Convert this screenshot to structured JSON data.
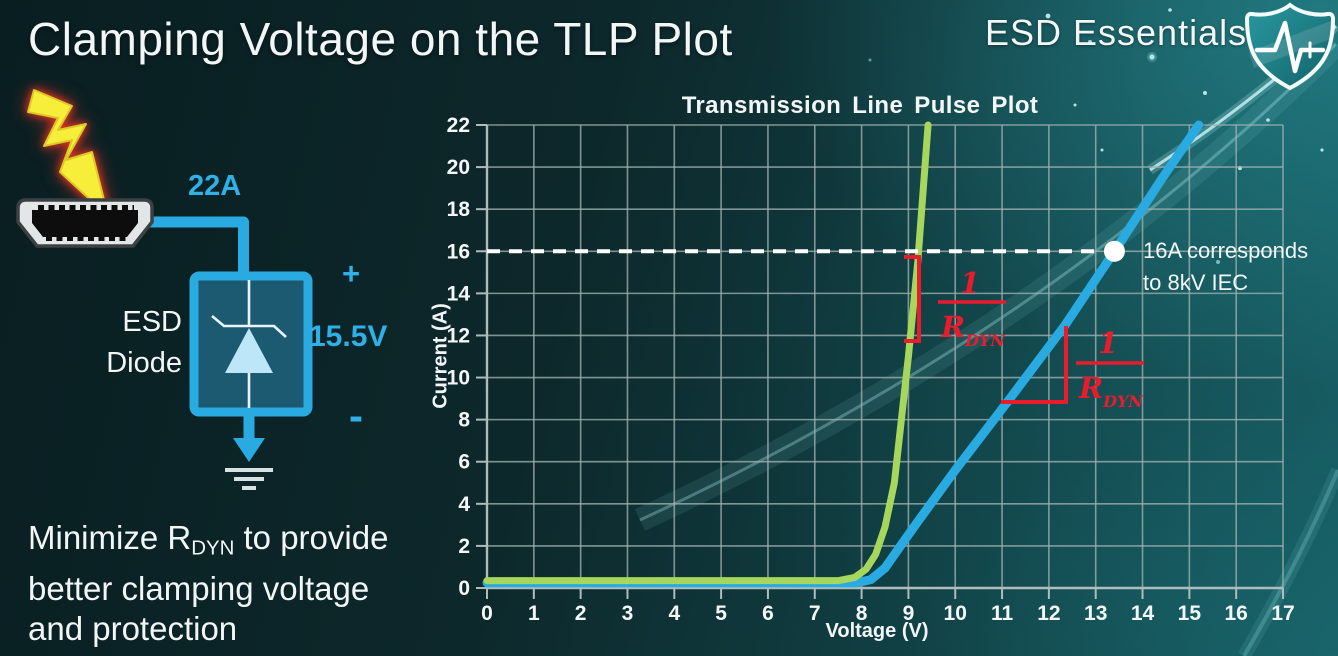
{
  "slide": {
    "title": "Clamping Voltage on the TLP Plot",
    "brand": "ESD Essentials"
  },
  "colors": {
    "accent_cyan": "#2fb0e6",
    "wire_blue": "#29abe2",
    "curve_green": "#a6d75c",
    "curve_blue": "#29abe2",
    "annotation_red": "#ea1b2c",
    "background_teal_dark": "#0a2023",
    "background_teal_light": "#135459",
    "lightning_yellow": "#f7ee39"
  },
  "icons": {
    "logo": "shield-pulse-icon",
    "surge": "lightning-bolt-icon",
    "connector": "hdmi-connector-icon",
    "device": "zener-diode-icon",
    "ground": "ground-symbol-icon"
  },
  "diagram": {
    "surge_label": "22A",
    "plus": "+",
    "clamp_voltage": "15.5V",
    "minus": "-",
    "device_label_line1": "ESD",
    "device_label_line2": "Diode"
  },
  "note": {
    "line1_pre": "Minimize R",
    "line1_sub": "DYN",
    "line1_post": " to provide",
    "line2": "better clamping voltage",
    "line3": "and protection"
  },
  "chart_data": {
    "type": "line",
    "title": "Transmission Line Pulse Plot",
    "xlabel": "Voltage (V)",
    "ylabel": "Current (A)",
    "xlim": [
      0,
      17
    ],
    "ylim": [
      0,
      22
    ],
    "x_ticks": [
      0,
      1,
      2,
      3,
      4,
      5,
      6,
      7,
      8,
      9,
      10,
      11,
      12,
      13,
      14,
      15,
      16,
      17
    ],
    "y_ticks": [
      0,
      2,
      4,
      6,
      8,
      10,
      12,
      14,
      16,
      18,
      20,
      22
    ],
    "grid": true,
    "legend": "none",
    "series": [
      {
        "name": "blue_curve_higher_rdyn",
        "color": "#29abe2",
        "width": 9,
        "points": [
          [
            0,
            0.25
          ],
          [
            7.9,
            0.25
          ],
          [
            8.2,
            0.4
          ],
          [
            8.5,
            0.95
          ],
          [
            8.8,
            1.9
          ],
          [
            9.15,
            3.0
          ],
          [
            10,
            5.6
          ],
          [
            11.1,
            8.8
          ],
          [
            12.35,
            12.5
          ],
          [
            13.4,
            16
          ],
          [
            14.4,
            19.4
          ],
          [
            15.2,
            22
          ]
        ]
      },
      {
        "name": "green_curve_low_rdyn",
        "color": "#a6d75c",
        "width": 7,
        "points": [
          [
            0,
            0.35
          ],
          [
            7.5,
            0.35
          ],
          [
            7.85,
            0.5
          ],
          [
            8.1,
            0.9
          ],
          [
            8.3,
            1.6
          ],
          [
            8.5,
            2.9
          ],
          [
            8.7,
            5.0
          ],
          [
            9.0,
            11.0
          ],
          [
            9.2,
            15.5
          ],
          [
            9.42,
            22
          ]
        ]
      }
    ],
    "reference_line": {
      "current": 16,
      "style": "white-dashed",
      "label_line1": "16A corresponds",
      "label_line2": "to 8kV IEC"
    },
    "marker": {
      "voltage": 13.4,
      "current": 16,
      "style": "white-dot"
    },
    "slope_label": {
      "numerator": "1",
      "denominator": "R",
      "denominator_sub": "DYN"
    }
  }
}
